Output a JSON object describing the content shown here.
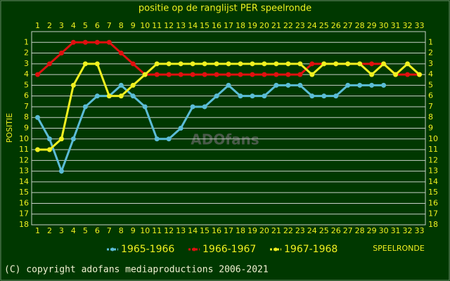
{
  "chart_data": {
    "type": "line",
    "title": "positie op de ranglijst PER speelronde",
    "x_label": "SPEELRONDE",
    "y_label": "POSITIE",
    "watermark": "ADOfans",
    "footer": "(C) copyright adofans mediaproductions 2006-2021",
    "x": [
      1,
      2,
      3,
      4,
      5,
      6,
      7,
      8,
      9,
      10,
      11,
      12,
      13,
      14,
      15,
      16,
      17,
      18,
      19,
      20,
      21,
      22,
      23,
      24,
      25,
      26,
      27,
      28,
      29,
      30,
      31,
      32,
      33
    ],
    "xlim": [
      0.5,
      33.5
    ],
    "xticks": [
      1,
      2,
      3,
      4,
      5,
      6,
      7,
      8,
      9,
      10,
      11,
      12,
      13,
      14,
      15,
      16,
      17,
      18,
      19,
      20,
      21,
      22,
      23,
      24,
      25,
      26,
      27,
      28,
      29,
      30,
      31,
      32,
      33
    ],
    "ylim": [
      0,
      18
    ],
    "y_inverted": true,
    "yticks": [
      1,
      2,
      3,
      4,
      5,
      6,
      7,
      8,
      9,
      10,
      11,
      12,
      13,
      14,
      15,
      16,
      17,
      18
    ],
    "grid": true,
    "series": [
      {
        "name": "1965-1966",
        "color": "#5bbcd6",
        "values": [
          8,
          10,
          13,
          10,
          7,
          6,
          6,
          5,
          6,
          7,
          10,
          10,
          9,
          7,
          7,
          6,
          5,
          6,
          6,
          6,
          5,
          5,
          5,
          6,
          6,
          6,
          5,
          5,
          5,
          5,
          null,
          null,
          null
        ]
      },
      {
        "name": "1966-1967",
        "color": "#e01010",
        "values": [
          4,
          3,
          2,
          1,
          1,
          1,
          1,
          2,
          3,
          4,
          4,
          4,
          4,
          4,
          4,
          4,
          4,
          4,
          4,
          4,
          4,
          4,
          4,
          3,
          3,
          3,
          3,
          3,
          3,
          3,
          4,
          4,
          4
        ]
      },
      {
        "name": "1967-1968",
        "color": "#f0f020",
        "values": [
          11,
          11,
          10,
          5,
          3,
          3,
          6,
          6,
          5,
          4,
          3,
          3,
          3,
          3,
          3,
          3,
          3,
          3,
          3,
          3,
          3,
          3,
          3,
          4,
          3,
          3,
          3,
          3,
          4,
          3,
          4,
          3,
          4
        ]
      }
    ]
  }
}
